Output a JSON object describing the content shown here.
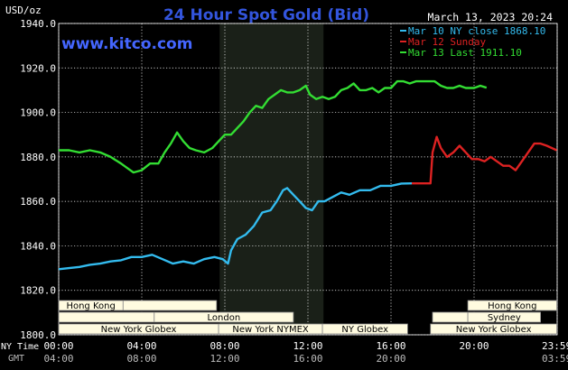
{
  "header": {
    "unit": "USD/oz",
    "title": "24 Hour Spot Gold (Bid)",
    "date": "March 13, 2023 20:24",
    "brand": "www.kitco.com"
  },
  "colors": {
    "background": "#000000",
    "grid": "#ffffff",
    "title": "#3355dd",
    "brand": "#4466ff",
    "mar10": "#33bbee",
    "mar12": "#dd2222",
    "mar13": "#33dd33",
    "session_shade": "#1a2018",
    "session_bar": "#fffbe0"
  },
  "chart_data": {
    "type": "line",
    "title": "24 Hour Spot Gold (Bid)",
    "ylabel": "USD/oz",
    "ylim": [
      1800,
      1940
    ],
    "yticks": [
      "1940.0",
      "1920.0",
      "1900.0",
      "1880.0",
      "1860.0",
      "1840.0",
      "1820.0",
      "1800.0"
    ],
    "ytick_values": [
      1940,
      1920,
      1900,
      1880,
      1860,
      1840,
      1820,
      1800
    ],
    "xlim": [
      0,
      24
    ],
    "x_ny_labels": [
      "00:00",
      "04:00",
      "08:00",
      "12:00",
      "16:00",
      "20:00",
      "23:59"
    ],
    "x_ny_values": [
      0,
      4,
      8,
      12,
      16,
      20,
      23.98
    ],
    "x_gmt_labels": [
      "04:00",
      "08:00",
      "12:00",
      "16:00",
      "20:00",
      "03:59"
    ],
    "x_gmt_values": [
      0,
      4,
      8,
      12,
      16,
      23.98
    ],
    "x_axis_captions": [
      "NY Time",
      "GMT"
    ],
    "grid": true,
    "legend": [
      {
        "label": "Mar 10 NY close 1868.10",
        "series": "mar10"
      },
      {
        "label": "Mar 12 Sunday",
        "series": "mar12"
      },
      {
        "label": "Mar 13 Last 1911.10",
        "series": "mar13"
      }
    ],
    "shaded_region": [
      7.75,
      12.75
    ],
    "series": [
      {
        "key": "mar10",
        "points": [
          [
            0,
            1829.5
          ],
          [
            0.5,
            1830
          ],
          [
            1,
            1830.5
          ],
          [
            1.5,
            1831.5
          ],
          [
            2,
            1832
          ],
          [
            2.5,
            1833
          ],
          [
            3,
            1833.5
          ],
          [
            3.5,
            1835
          ],
          [
            4,
            1835
          ],
          [
            4.5,
            1836
          ],
          [
            5,
            1834
          ],
          [
            5.5,
            1832
          ],
          [
            6,
            1833
          ],
          [
            6.5,
            1832
          ],
          [
            7,
            1834
          ],
          [
            7.5,
            1835
          ],
          [
            7.9,
            1834
          ],
          [
            8.15,
            1832
          ],
          [
            8.3,
            1838
          ],
          [
            8.6,
            1843
          ],
          [
            9,
            1845
          ],
          [
            9.4,
            1849
          ],
          [
            9.8,
            1855
          ],
          [
            10.2,
            1856
          ],
          [
            10.5,
            1860
          ],
          [
            10.8,
            1865
          ],
          [
            11,
            1866
          ],
          [
            11.3,
            1863
          ],
          [
            11.6,
            1860
          ],
          [
            11.9,
            1857
          ],
          [
            12.2,
            1856
          ],
          [
            12.5,
            1860
          ],
          [
            12.8,
            1860
          ],
          [
            13.2,
            1862
          ],
          [
            13.6,
            1864
          ],
          [
            14,
            1863
          ],
          [
            14.5,
            1865
          ],
          [
            15,
            1865
          ],
          [
            15.5,
            1867
          ],
          [
            16,
            1867
          ],
          [
            16.5,
            1868
          ],
          [
            17,
            1868.1
          ]
        ]
      },
      {
        "key": "mar12",
        "points": [
          [
            17,
            1868.1
          ],
          [
            17.9,
            1868.1
          ],
          [
            18,
            1882
          ],
          [
            18.2,
            1889
          ],
          [
            18.4,
            1884
          ],
          [
            18.7,
            1880
          ],
          [
            19,
            1882
          ],
          [
            19.3,
            1885
          ],
          [
            19.6,
            1882
          ],
          [
            19.9,
            1879
          ],
          [
            20.2,
            1879
          ],
          [
            20.5,
            1878
          ],
          [
            20.8,
            1880
          ],
          [
            21.1,
            1878
          ],
          [
            21.4,
            1876
          ],
          [
            21.7,
            1876
          ],
          [
            22,
            1874
          ],
          [
            22.3,
            1878
          ],
          [
            22.6,
            1882
          ],
          [
            22.9,
            1886
          ],
          [
            23.2,
            1886
          ],
          [
            23.5,
            1885
          ],
          [
            23.98,
            1883
          ]
        ]
      },
      {
        "key": "mar13",
        "points": [
          [
            0,
            1883
          ],
          [
            0.5,
            1883
          ],
          [
            1,
            1882
          ],
          [
            1.5,
            1883
          ],
          [
            2,
            1882
          ],
          [
            2.5,
            1880
          ],
          [
            3,
            1877
          ],
          [
            3.3,
            1875
          ],
          [
            3.6,
            1873
          ],
          [
            4,
            1874
          ],
          [
            4.4,
            1877
          ],
          [
            4.8,
            1877
          ],
          [
            5.1,
            1882
          ],
          [
            5.4,
            1886
          ],
          [
            5.7,
            1891
          ],
          [
            6,
            1887
          ],
          [
            6.3,
            1884
          ],
          [
            6.6,
            1883
          ],
          [
            7,
            1882
          ],
          [
            7.4,
            1884
          ],
          [
            7.7,
            1887
          ],
          [
            8,
            1890
          ],
          [
            8.3,
            1890
          ],
          [
            8.6,
            1893
          ],
          [
            8.9,
            1896
          ],
          [
            9.2,
            1900
          ],
          [
            9.5,
            1903
          ],
          [
            9.8,
            1902
          ],
          [
            10.1,
            1906
          ],
          [
            10.4,
            1908
          ],
          [
            10.7,
            1910
          ],
          [
            11,
            1909
          ],
          [
            11.3,
            1909
          ],
          [
            11.6,
            1910
          ],
          [
            11.9,
            1912
          ],
          [
            12.1,
            1908
          ],
          [
            12.4,
            1906
          ],
          [
            12.7,
            1907
          ],
          [
            13,
            1906
          ],
          [
            13.3,
            1907
          ],
          [
            13.6,
            1910
          ],
          [
            13.9,
            1911
          ],
          [
            14.2,
            1913
          ],
          [
            14.5,
            1910
          ],
          [
            14.8,
            1910
          ],
          [
            15.1,
            1911
          ],
          [
            15.4,
            1909
          ],
          [
            15.7,
            1911
          ],
          [
            16,
            1911
          ],
          [
            16.3,
            1914
          ],
          [
            16.6,
            1914
          ],
          [
            16.9,
            1913
          ],
          [
            17.2,
            1914
          ],
          [
            17.5,
            1914
          ],
          [
            17.8,
            1914
          ],
          [
            18.1,
            1914
          ],
          [
            18.4,
            1912
          ],
          [
            18.7,
            1911
          ],
          [
            19,
            1911
          ],
          [
            19.3,
            1912
          ],
          [
            19.6,
            1911
          ],
          [
            20,
            1911
          ],
          [
            20.3,
            1912
          ],
          [
            20.6,
            1911.1
          ]
        ]
      }
    ]
  },
  "sessions": [
    {
      "label": "Hong Kong",
      "start": 0,
      "end": 3.1,
      "row": 0
    },
    {
      "label": "",
      "start": 3.1,
      "end": 7.6,
      "row": 0
    },
    {
      "label": "",
      "start": 0,
      "end": 4.6,
      "row": 1
    },
    {
      "label": "London",
      "start": 4.6,
      "end": 11.3,
      "row": 1
    },
    {
      "label": "New York Globex",
      "start": 0,
      "end": 7.7,
      "row": 2
    },
    {
      "label": "New York NYMEX",
      "start": 7.7,
      "end": 12.7,
      "row": 2
    },
    {
      "label": "NY Globex",
      "start": 12.7,
      "end": 16.8,
      "row": 2
    },
    {
      "label": "Hong Kong",
      "start": 19.7,
      "end": 23.98,
      "row": 0
    },
    {
      "label": "",
      "start": 18,
      "end": 19.7,
      "row": 1
    },
    {
      "label": "Sydney",
      "start": 19.7,
      "end": 23.2,
      "row": 1
    },
    {
      "label": "New York Globex",
      "start": 17.9,
      "end": 23.98,
      "row": 2
    }
  ]
}
